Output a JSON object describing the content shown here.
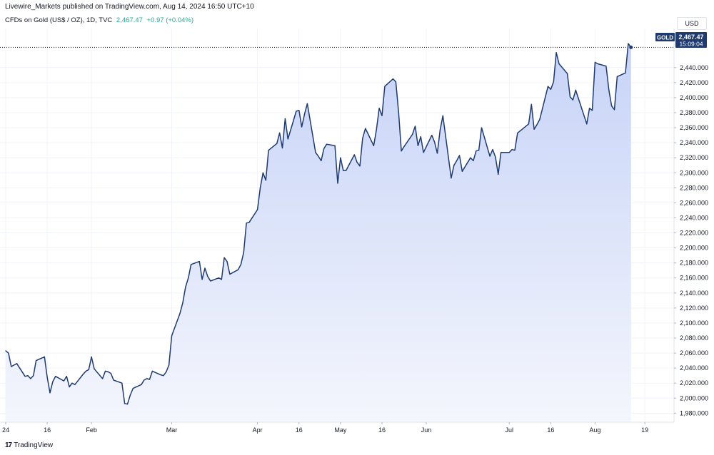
{
  "header": {
    "publisher_line": "Livewire_Markets published on TradingView.com, Aug 14, 2024 16:50 UTC+10",
    "symbol_line": "CFDs on Gold (US$ / OZ), 1D, TVC",
    "last_price": "2,467.47",
    "change": "+0.97 (+0.04%)"
  },
  "currency_button": "USD",
  "price_badge": {
    "symbol": "GOLD",
    "price": "2,467.47",
    "countdown": "15:09:04"
  },
  "footer": {
    "logo": "17",
    "brand": "TradingView"
  },
  "colors": {
    "line": "#1e3a6e",
    "fill_top": "#c7d3f7",
    "fill_bottom": "#f4f6fd",
    "badge": "#1e3a6e",
    "grid": "#f0f3fa"
  },
  "chart_data": {
    "type": "area",
    "title": "",
    "xlabel": "",
    "ylabel": "",
    "ylim": [
      1968,
      2492
    ],
    "grid": true,
    "y_ticks": [
      "1,980.000",
      "2,000.000",
      "2,020.000",
      "2,040.000",
      "2,060.000",
      "2,080.000",
      "2,100.000",
      "2,120.000",
      "2,140.000",
      "2,160.000",
      "2,180.000",
      "2,200.000",
      "2,220.000",
      "2,240.000",
      "2,260.000",
      "2,280.000",
      "2,300.000",
      "2,320.000",
      "2,340.000",
      "2,360.000",
      "2,380.000",
      "2,400.000",
      "2,420.000",
      "2,440.000"
    ],
    "x_ticks": [
      {
        "label": "24",
        "date": "2024-01-01"
      },
      {
        "label": "16",
        "date": "2024-01-16"
      },
      {
        "label": "Feb",
        "date": "2024-02-01"
      },
      {
        "label": "Mar",
        "date": "2024-03-01"
      },
      {
        "label": "Apr",
        "date": "2024-04-01"
      },
      {
        "label": "16",
        "date": "2024-04-16"
      },
      {
        "label": "May",
        "date": "2024-05-01"
      },
      {
        "label": "16",
        "date": "2024-05-16"
      },
      {
        "label": "Jun",
        "date": "2024-06-01"
      },
      {
        "label": "Jul",
        "date": "2024-07-01"
      },
      {
        "label": "16",
        "date": "2024-07-16"
      },
      {
        "label": "Aug",
        "date": "2024-08-01"
      },
      {
        "label": "19",
        "date": "2024-08-19"
      }
    ],
    "dates": [
      "2024-01-01",
      "2024-01-02",
      "2024-01-03",
      "2024-01-04",
      "2024-01-05",
      "2024-01-08",
      "2024-01-09",
      "2024-01-10",
      "2024-01-11",
      "2024-01-12",
      "2024-01-15",
      "2024-01-16",
      "2024-01-17",
      "2024-01-18",
      "2024-01-19",
      "2024-01-22",
      "2024-01-23",
      "2024-01-24",
      "2024-01-25",
      "2024-01-26",
      "2024-01-29",
      "2024-01-30",
      "2024-01-31",
      "2024-02-01",
      "2024-02-02",
      "2024-02-05",
      "2024-02-06",
      "2024-02-07",
      "2024-02-08",
      "2024-02-09",
      "2024-02-12",
      "2024-02-13",
      "2024-02-14",
      "2024-02-15",
      "2024-02-16",
      "2024-02-19",
      "2024-02-20",
      "2024-02-21",
      "2024-02-22",
      "2024-02-23",
      "2024-02-26",
      "2024-02-27",
      "2024-02-28",
      "2024-02-29",
      "2024-03-01",
      "2024-03-04",
      "2024-03-05",
      "2024-03-06",
      "2024-03-07",
      "2024-03-08",
      "2024-03-11",
      "2024-03-12",
      "2024-03-13",
      "2024-03-14",
      "2024-03-15",
      "2024-03-18",
      "2024-03-19",
      "2024-03-20",
      "2024-03-21",
      "2024-03-22",
      "2024-03-25",
      "2024-03-26",
      "2024-03-27",
      "2024-03-28",
      "2024-03-29",
      "2024-04-01",
      "2024-04-02",
      "2024-04-03",
      "2024-04-04",
      "2024-04-05",
      "2024-04-08",
      "2024-04-09",
      "2024-04-10",
      "2024-04-11",
      "2024-04-12",
      "2024-04-15",
      "2024-04-16",
      "2024-04-17",
      "2024-04-18",
      "2024-04-19",
      "2024-04-22",
      "2024-04-23",
      "2024-04-24",
      "2024-04-25",
      "2024-04-26",
      "2024-04-29",
      "2024-04-30",
      "2024-05-01",
      "2024-05-02",
      "2024-05-03",
      "2024-05-06",
      "2024-05-07",
      "2024-05-08",
      "2024-05-09",
      "2024-05-10",
      "2024-05-13",
      "2024-05-14",
      "2024-05-15",
      "2024-05-16",
      "2024-05-17",
      "2024-05-20",
      "2024-05-21",
      "2024-05-22",
      "2024-05-23",
      "2024-05-24",
      "2024-05-27",
      "2024-05-28",
      "2024-05-29",
      "2024-05-30",
      "2024-05-31",
      "2024-06-03",
      "2024-06-04",
      "2024-06-05",
      "2024-06-06",
      "2024-06-07",
      "2024-06-10",
      "2024-06-11",
      "2024-06-12",
      "2024-06-13",
      "2024-06-14",
      "2024-06-17",
      "2024-06-18",
      "2024-06-19",
      "2024-06-20",
      "2024-06-21",
      "2024-06-24",
      "2024-06-25",
      "2024-06-26",
      "2024-06-27",
      "2024-06-28",
      "2024-07-01",
      "2024-07-02",
      "2024-07-03",
      "2024-07-04",
      "2024-07-05",
      "2024-07-08",
      "2024-07-09",
      "2024-07-10",
      "2024-07-11",
      "2024-07-12",
      "2024-07-15",
      "2024-07-16",
      "2024-07-17",
      "2024-07-18",
      "2024-07-19",
      "2024-07-22",
      "2024-07-23",
      "2024-07-24",
      "2024-07-25",
      "2024-07-26",
      "2024-07-29",
      "2024-07-30",
      "2024-07-31",
      "2024-08-01",
      "2024-08-02",
      "2024-08-05",
      "2024-08-06",
      "2024-08-07",
      "2024-08-08",
      "2024-08-09",
      "2024-08-12",
      "2024-08-13",
      "2024-08-14"
    ],
    "series": [
      {
        "values": [
          2063,
          2060,
          2042,
          2044,
          2046,
          2029,
          2030,
          2026,
          2030,
          2050,
          2055,
          2028,
          2007,
          2022,
          2029,
          2023,
          2029,
          2015,
          2020,
          2018,
          2032,
          2036,
          2038,
          2055,
          2039,
          2026,
          2036,
          2035,
          2033,
          2024,
          2020,
          1993,
          1992,
          2004,
          2013,
          2018,
          2024,
          2026,
          2025,
          2036,
          2031,
          2030,
          2035,
          2044,
          2083,
          2113,
          2127,
          2148,
          2160,
          2178,
          2182,
          2158,
          2173,
          2162,
          2156,
          2160,
          2158,
          2187,
          2182,
          2165,
          2171,
          2178,
          2194,
          2233,
          2234,
          2251,
          2280,
          2300,
          2290,
          2330,
          2339,
          2353,
          2333,
          2372,
          2345,
          2382,
          2383,
          2361,
          2378,
          2392,
          2327,
          2322,
          2316,
          2332,
          2338,
          2336,
          2286,
          2320,
          2303,
          2303,
          2324,
          2314,
          2309,
          2346,
          2359,
          2336,
          2358,
          2386,
          2376,
          2415,
          2425,
          2421,
          2380,
          2329,
          2335,
          2351,
          2362,
          2336,
          2348,
          2327,
          2350,
          2341,
          2326,
          2357,
          2376,
          2293,
          2310,
          2316,
          2323,
          2302,
          2320,
          2316,
          2329,
          2330,
          2360,
          2322,
          2331,
          2321,
          2298,
          2327,
          2327,
          2331,
          2330,
          2353,
          2356,
          2365,
          2391,
          2358,
          2364,
          2371,
          2415,
          2411,
          2421,
          2460,
          2445,
          2432,
          2401,
          2397,
          2410,
          2399,
          2365,
          2386,
          2383,
          2447,
          2445,
          2442,
          2410,
          2389,
          2384,
          2428,
          2433,
          2472,
          2467
        ]
      }
    ]
  }
}
